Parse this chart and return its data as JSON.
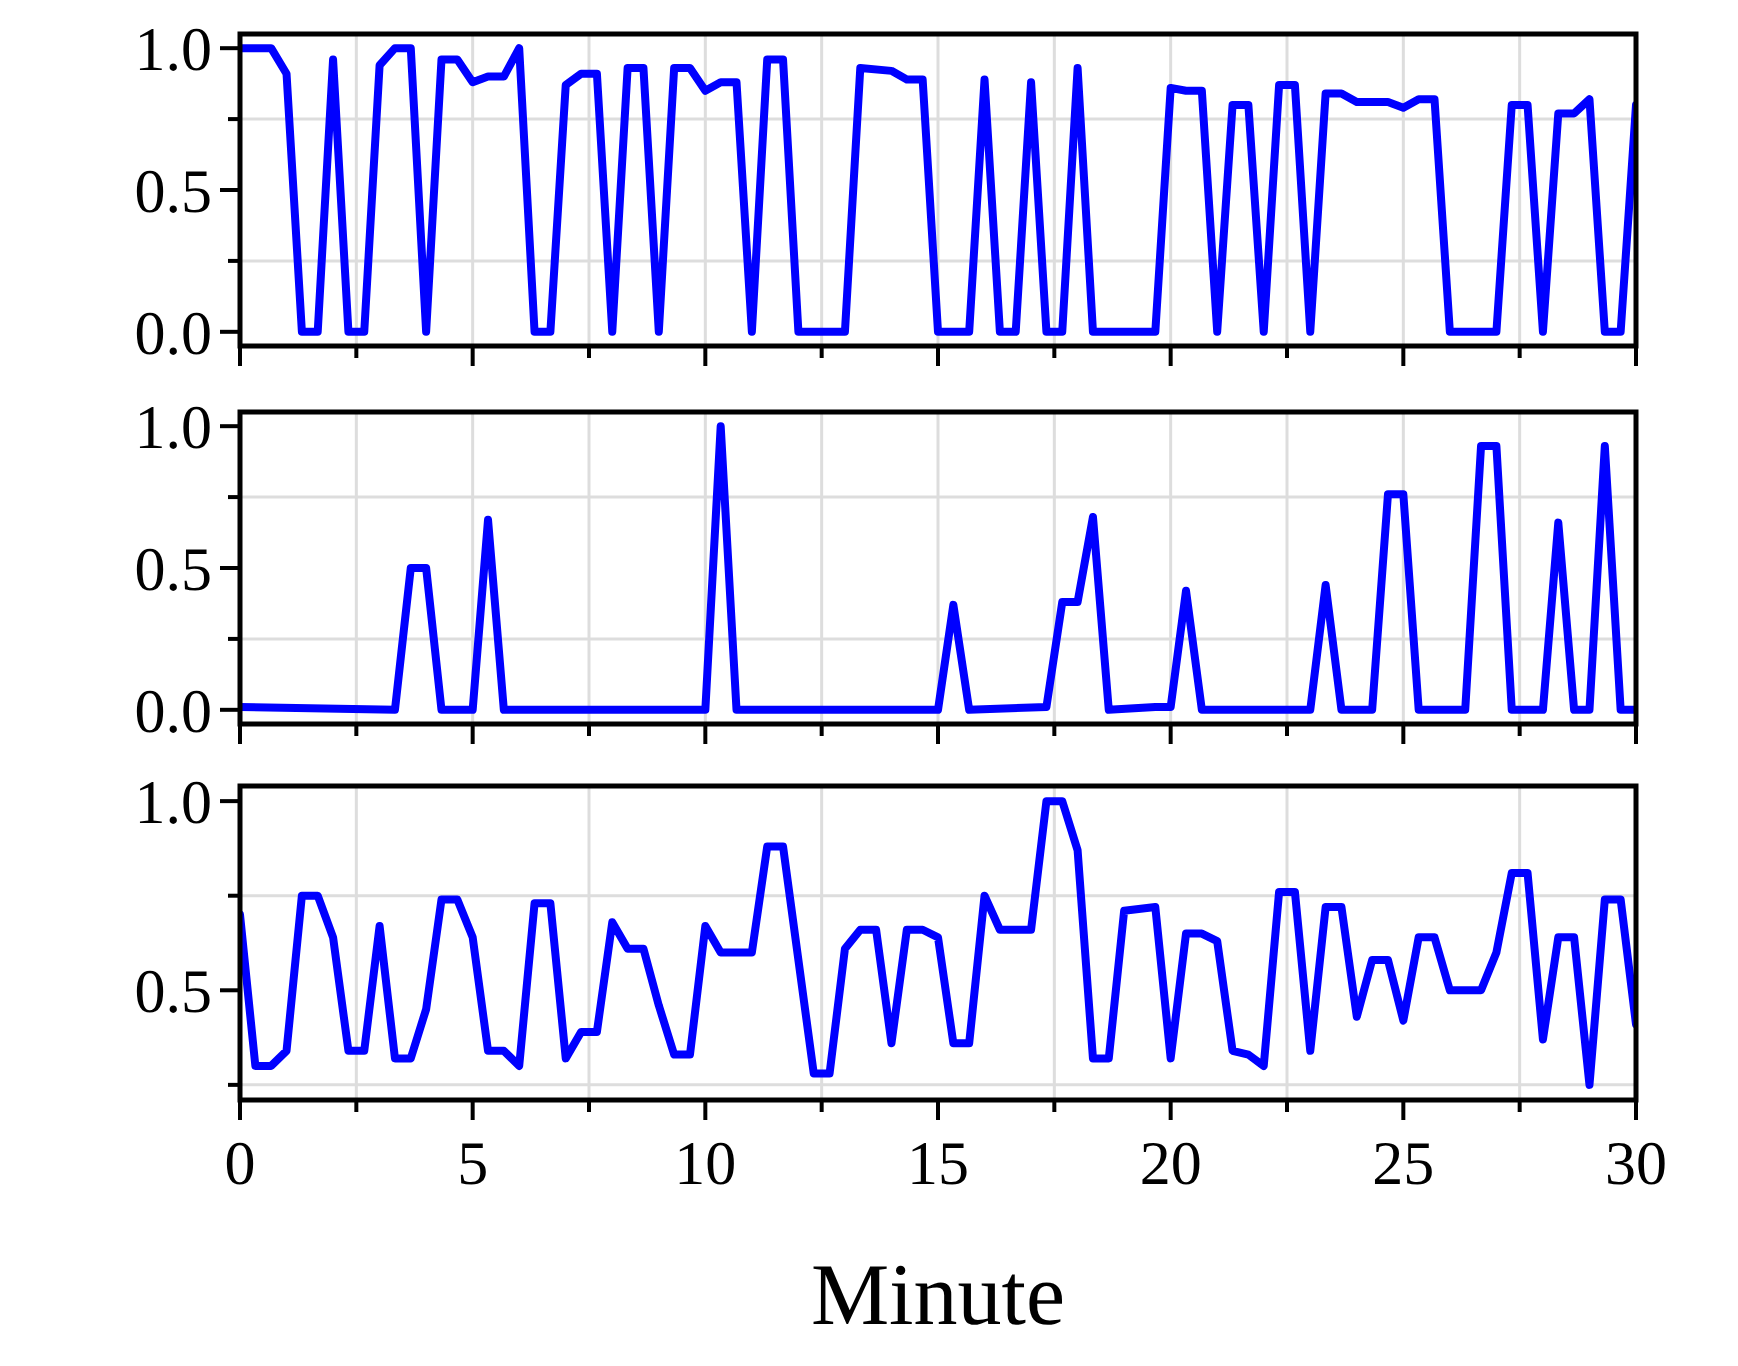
{
  "chart_data": [
    {
      "type": "line",
      "x": [
        0,
        0.67,
        1,
        1.33,
        1.67,
        2,
        2.33,
        2.67,
        3,
        3.33,
        3.67,
        4,
        4.33,
        4.67,
        5,
        5.33,
        5.67,
        6,
        6.33,
        6.67,
        7,
        7.33,
        7.67,
        8,
        8.33,
        8.67,
        9,
        9.33,
        9.67,
        10,
        10.33,
        10.67,
        11,
        11.33,
        11.67,
        12,
        13,
        13.33,
        14,
        14.33,
        14.67,
        15,
        15.67,
        16,
        16.33,
        16.67,
        17,
        17.33,
        17.67,
        18,
        18.33,
        19.67,
        20,
        20.33,
        20.67,
        21,
        21.33,
        21.67,
        22,
        22.33,
        22.67,
        23,
        23.33,
        23.67,
        24,
        24.33,
        24.67,
        25,
        25.33,
        25.67,
        26,
        27,
        27.33,
        27.67,
        28,
        28.33,
        28.67,
        29,
        29.33,
        29.67,
        30
      ],
      "series": [
        {
          "color": "#0000ff",
          "values": [
            1,
            1,
            0.91,
            0,
            0,
            0.96,
            0,
            0,
            0.94,
            1,
            1,
            0,
            0.96,
            0.96,
            0.88,
            0.9,
            0.9,
            1,
            0,
            0,
            0.87,
            0.91,
            0.91,
            0,
            0.93,
            0.93,
            0,
            0.93,
            0.93,
            0.85,
            0.88,
            0.88,
            0,
            0.96,
            0.96,
            0,
            0,
            0.93,
            0.92,
            0.89,
            0.89,
            0,
            0,
            0.89,
            0,
            0,
            0.88,
            0,
            0,
            0.93,
            0,
            0,
            0.86,
            0.85,
            0.85,
            0,
            0.8,
            0.8,
            0,
            0.87,
            0.87,
            0,
            0.84,
            0.84,
            0.81,
            0.81,
            0.81,
            0.79,
            0.82,
            0.82,
            0,
            0,
            0.8,
            0.8,
            0,
            0.77,
            0.77,
            0.82,
            0,
            0,
            0.8
          ]
        }
      ],
      "xlim": [
        0,
        30
      ],
      "xticks": [
        0,
        {
          "value": 2.5,
          "label": null
        },
        {
          "value": 5,
          "label": null
        },
        {
          "value": 7.5,
          "label": null
        },
        {
          "value": 10,
          "label": null
        },
        {
          "value": 12.5,
          "label": null
        },
        {
          "value": 15,
          "label": null
        },
        {
          "value": 17.5,
          "label": null
        },
        {
          "value": 20,
          "label": null
        },
        {
          "value": 22.5,
          "label": null
        },
        {
          "value": 25,
          "label": null
        },
        {
          "value": 27.5,
          "label": null
        },
        {
          "value": 30,
          "label": null
        }
      ],
      "ylim": [
        -0.05,
        1.05
      ],
      "yticks": [
        {
          "value": 0,
          "label": "0.0"
        },
        {
          "value": 0.25,
          "label": null
        },
        {
          "value": 0.5,
          "label": "0.5"
        },
        {
          "value": 0.75,
          "label": null
        },
        {
          "value": 1,
          "label": "1.0"
        }
      ],
      "tick_labels": "y",
      "grid": true
    },
    {
      "type": "line",
      "x": [
        0,
        3.33,
        3.67,
        4,
        4.33,
        5,
        5.33,
        5.67,
        10,
        10.33,
        10.67,
        15,
        15.33,
        15.67,
        17.33,
        17.67,
        18,
        18.33,
        18.67,
        19.67,
        20,
        20.33,
        20.67,
        23,
        23.33,
        23.67,
        24.33,
        24.67,
        25,
        25.33,
        26.33,
        26.67,
        27,
        27.33,
        28,
        28.33,
        28.67,
        29,
        29.33,
        29.67,
        30
      ],
      "series": [
        {
          "color": "#0000ff",
          "values": [
            0.01,
            0,
            0.5,
            0.5,
            0,
            0,
            0.67,
            0,
            0,
            1,
            0,
            0,
            0.37,
            0,
            0.01,
            0.38,
            0.38,
            0.68,
            0,
            0.01,
            0.01,
            0.42,
            0,
            0,
            0.44,
            0,
            0,
            0.76,
            0.76,
            0,
            0,
            0.93,
            0.93,
            0,
            0,
            0.66,
            0,
            0,
            0.93,
            0,
            0
          ]
        }
      ],
      "xlim": [
        0,
        30
      ],
      "xticks": [
        {
          "value": 0,
          "label": null
        },
        {
          "value": 2.5,
          "label": null
        },
        {
          "value": 5,
          "label": null
        },
        {
          "value": 7.5,
          "label": null
        },
        {
          "value": 10,
          "label": null
        },
        {
          "value": 12.5,
          "label": null
        },
        {
          "value": 15,
          "label": null
        },
        {
          "value": 17.5,
          "label": null
        },
        {
          "value": 20,
          "label": null
        },
        {
          "value": 22.5,
          "label": null
        },
        {
          "value": 25,
          "label": null
        },
        {
          "value": 27.5,
          "label": null
        },
        {
          "value": 30,
          "label": null
        }
      ],
      "ylim": [
        -0.05,
        1.05
      ],
      "yticks": [
        {
          "value": 0,
          "label": "0.0"
        },
        {
          "value": 0.25,
          "label": null
        },
        {
          "value": 0.5,
          "label": "0.5"
        },
        {
          "value": 0.75,
          "label": null
        },
        {
          "value": 1,
          "label": "1.0"
        }
      ],
      "tick_labels": "y",
      "grid": true
    },
    {
      "type": "line",
      "xlabel": "Minute",
      "x": [
        0,
        0.33,
        0.67,
        1,
        1.33,
        1.67,
        2,
        2.33,
        2.67,
        3,
        3.33,
        3.67,
        4,
        4.33,
        4.67,
        5,
        5.33,
        5.67,
        6,
        6.33,
        6.67,
        7,
        7.33,
        7.67,
        8,
        8.33,
        8.67,
        9,
        9.33,
        9.67,
        10,
        10.33,
        11,
        11.33,
        11.67,
        12.33,
        12.67,
        13,
        13.33,
        13.67,
        14,
        14.33,
        14.67,
        15,
        15.33,
        15.67,
        16,
        16.33,
        17,
        17.33,
        17.67,
        18,
        18.33,
        18.67,
        19,
        19.67,
        20,
        20.33,
        20.67,
        21,
        21.33,
        21.67,
        22,
        22.33,
        22.67,
        23,
        23.33,
        23.67,
        24,
        24.33,
        24.67,
        25,
        25.33,
        25.67,
        26,
        26.67,
        27,
        27.33,
        27.67,
        28,
        28.33,
        28.67,
        29,
        29.33,
        29.67,
        30
      ],
      "series": [
        {
          "color": "#0000ff",
          "values": [
            0.7,
            0.3,
            0.3,
            0.34,
            0.75,
            0.75,
            0.64,
            0.34,
            0.34,
            0.67,
            0.32,
            0.32,
            0.45,
            0.74,
            0.74,
            0.64,
            0.34,
            0.34,
            0.3,
            0.73,
            0.73,
            0.32,
            0.39,
            0.39,
            0.68,
            0.61,
            0.61,
            0.46,
            0.33,
            0.33,
            0.67,
            0.6,
            0.6,
            0.88,
            0.88,
            0.28,
            0.28,
            0.61,
            0.66,
            0.66,
            0.36,
            0.66,
            0.66,
            0.64,
            0.36,
            0.36,
            0.75,
            0.66,
            0.66,
            1,
            1,
            0.87,
            0.32,
            0.32,
            0.71,
            0.72,
            0.32,
            0.65,
            0.65,
            0.63,
            0.34,
            0.33,
            0.3,
            0.76,
            0.76,
            0.34,
            0.72,
            0.72,
            0.43,
            0.58,
            0.58,
            0.42,
            0.64,
            0.64,
            0.5,
            0.5,
            0.6,
            0.81,
            0.81,
            0.37,
            0.64,
            0.64,
            0.25,
            0.74,
            0.74,
            0.41
          ]
        }
      ],
      "xlim": [
        0,
        30
      ],
      "xticks": [
        0,
        {
          "value": 2.5,
          "label": null
        },
        5,
        {
          "value": 7.5,
          "label": null
        },
        10,
        {
          "value": 12.5,
          "label": null
        },
        15,
        {
          "value": 17.5,
          "label": null
        },
        20,
        {
          "value": 22.5,
          "label": null
        },
        25,
        {
          "value": 27.5,
          "label": null
        },
        30
      ],
      "ylim": [
        0.21,
        1.04
      ],
      "yticks": [
        {
          "value": 0.25,
          "label": null
        },
        {
          "value": 0.5,
          "label": "0.5"
        },
        {
          "value": 0.75,
          "label": null
        },
        {
          "value": 1,
          "label": "1.0"
        }
      ],
      "grid": true
    }
  ]
}
